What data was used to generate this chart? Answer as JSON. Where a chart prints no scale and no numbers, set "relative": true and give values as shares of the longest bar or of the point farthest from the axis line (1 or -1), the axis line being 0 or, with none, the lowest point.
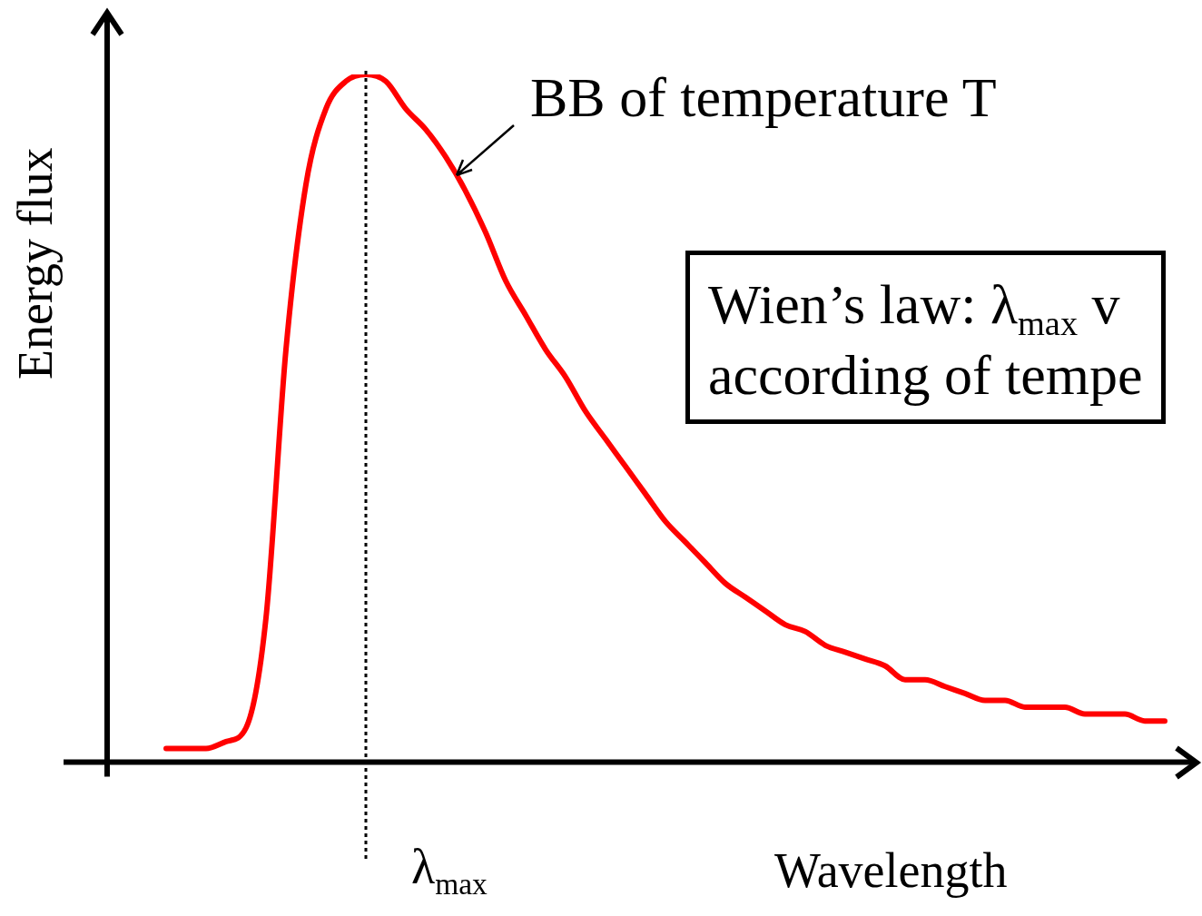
{
  "chart_data": {
    "type": "line",
    "relative": true,
    "ylabel": "Energy flux",
    "xlabel": "Wavelength",
    "categories": [
      null,
      null,
      null,
      null,
      null,
      null,
      null,
      null,
      null,
      null,
      null,
      null,
      null,
      null,
      null,
      null,
      null,
      null,
      null,
      null,
      null,
      null,
      null,
      null,
      null,
      null,
      null,
      null,
      null,
      null,
      null,
      null,
      null,
      null,
      null,
      null,
      null,
      null,
      null,
      null,
      null,
      null,
      null,
      null,
      null,
      null,
      null,
      null,
      null,
      null,
      null
    ],
    "series": [
      {
        "color": "#ff0000",
        "values": [
          0.02,
          0.02,
          0.02,
          0.03,
          0.05,
          0.21,
          0.6,
          0.84,
          0.95,
          0.99,
          1,
          0.99,
          0.95,
          0.92,
          0.88,
          0.83,
          0.77,
          0.7,
          0.65,
          0.6,
          0.56,
          0.51,
          0.47,
          0.43,
          0.39,
          0.35,
          0.32,
          0.29,
          0.26,
          0.24,
          0.22,
          0.2,
          0.19,
          0.17,
          0.16,
          0.15,
          0.14,
          0.12,
          0.12,
          0.11,
          0.1,
          0.09,
          0.09,
          0.08,
          0.08,
          0.08,
          0.07,
          0.07,
          0.07,
          0.06,
          0.06
        ]
      }
    ],
    "annotations": [
      "BB of temperature T",
      "Wien’s law: λ$_{max}$ v\naccording of tempe",
      "λ$_{max}$"
    ],
    "grid": false,
    "legend": false,
    "marker": "none",
    "line_style": "solid"
  }
}
